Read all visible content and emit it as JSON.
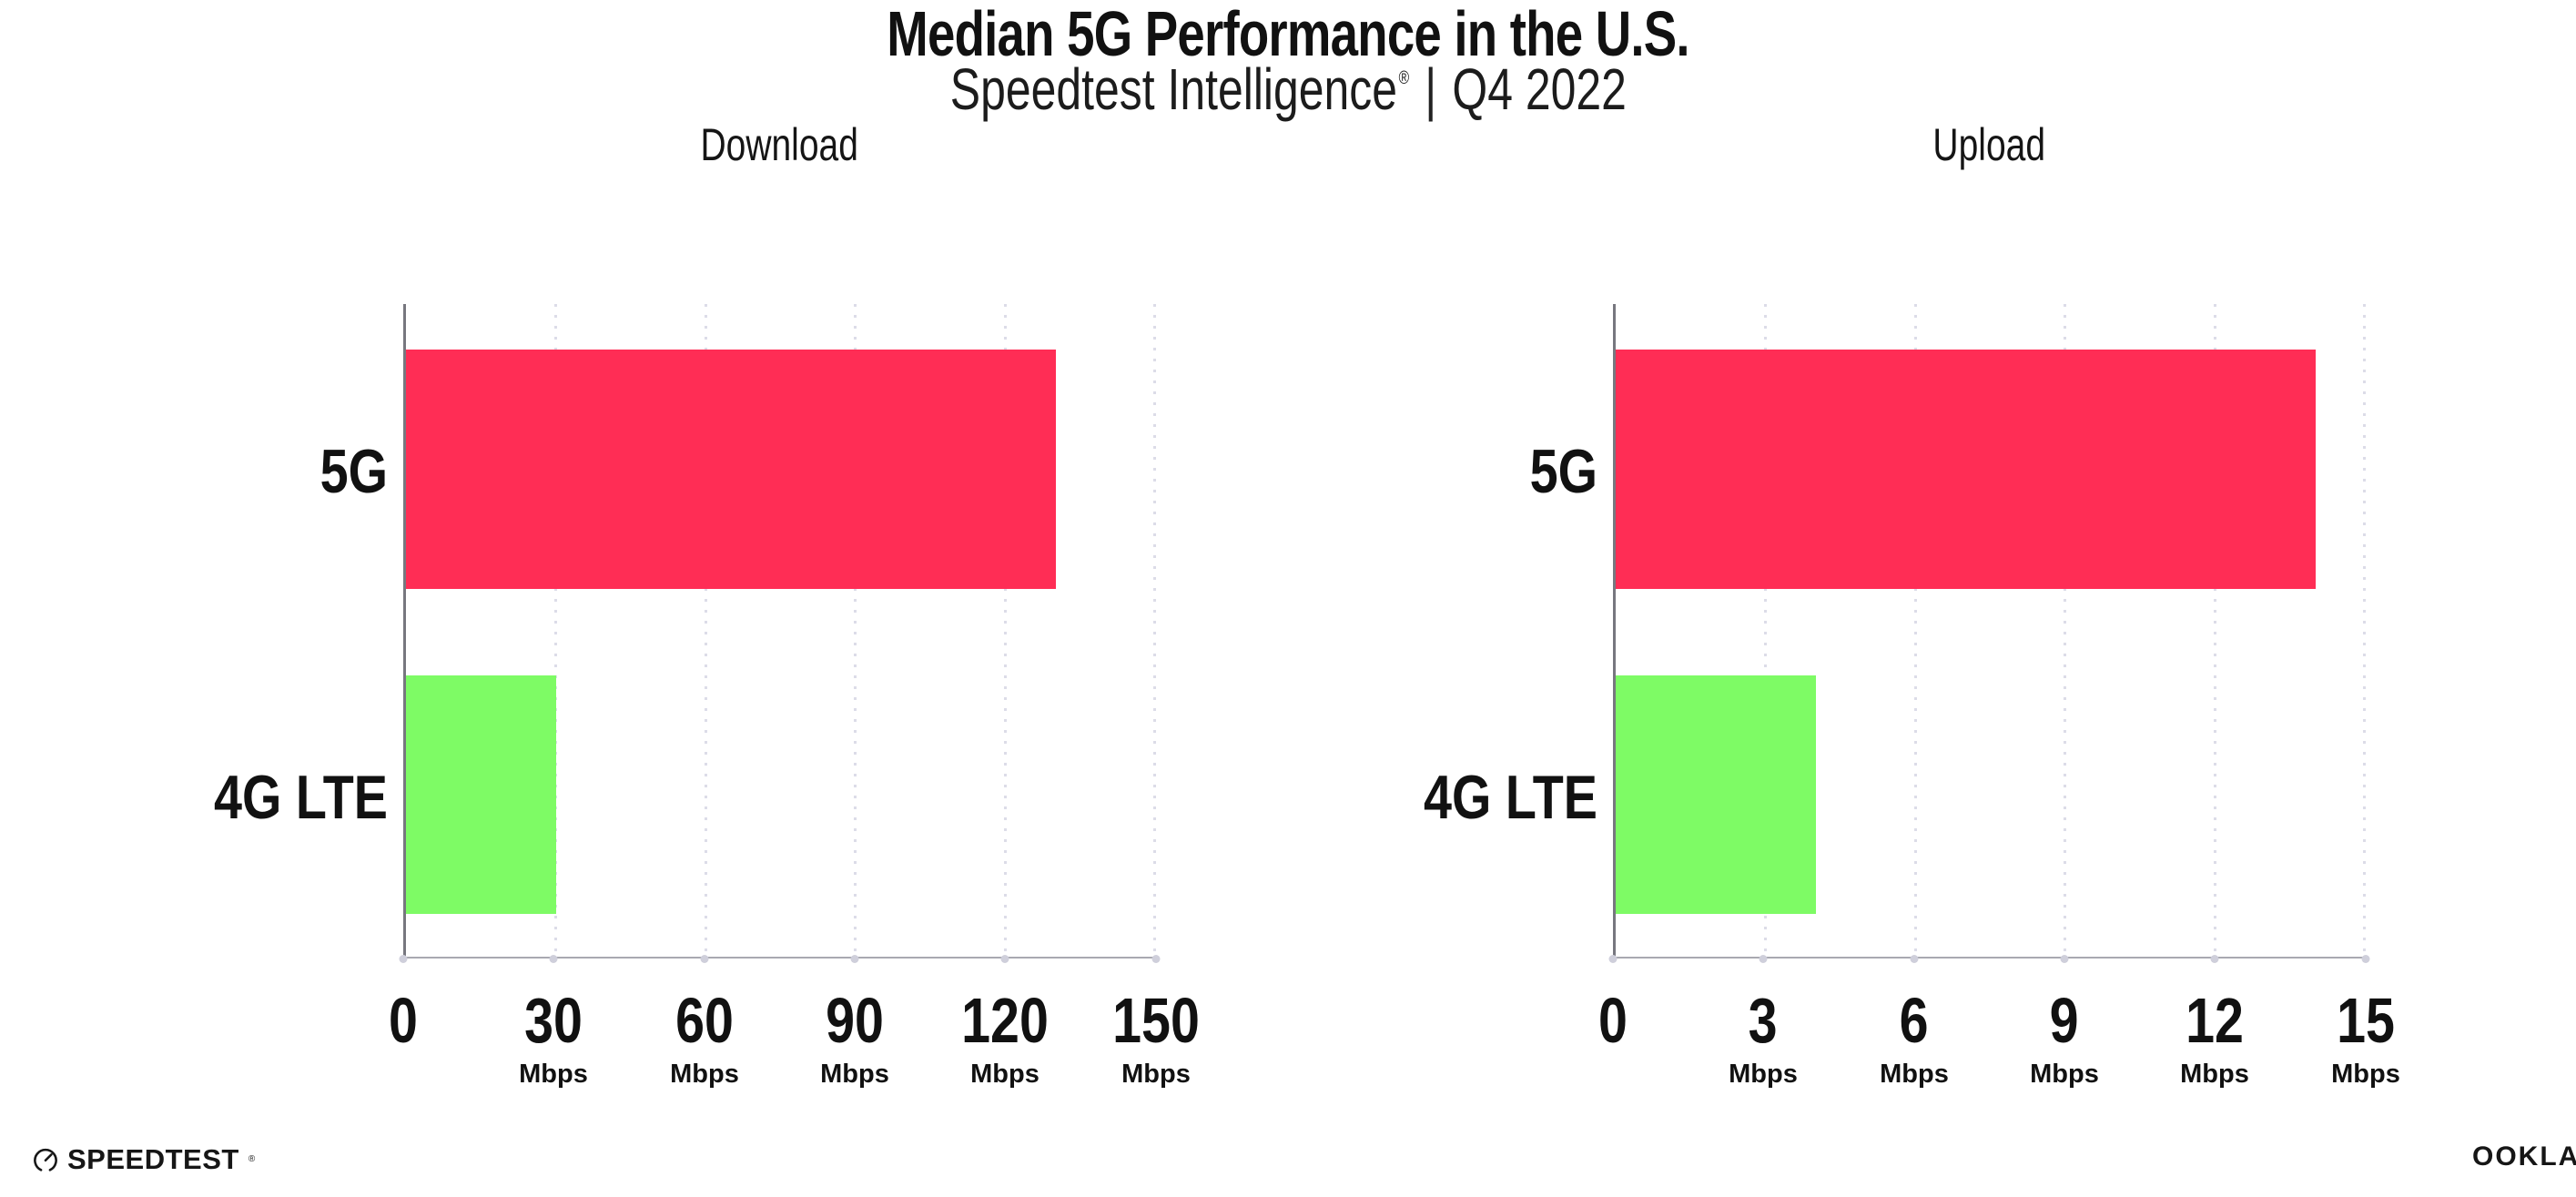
{
  "header": {
    "title": "Median 5G Performance in the U.S.",
    "subtitle": {
      "brand": "Speedtest Intelligence",
      "registered": "®",
      "separator": "|",
      "period": "Q4 2022"
    }
  },
  "chart_data": [
    {
      "type": "bar",
      "orientation": "horizontal",
      "title": "Download",
      "categories": [
        "5G",
        "4G LTE"
      ],
      "values": [
        130,
        30
      ],
      "unit": "Mbps",
      "xlim": [
        0,
        150
      ],
      "xticks": [
        0,
        30,
        60,
        90,
        120,
        150
      ],
      "tick_unit_label": "Mbps",
      "xlabel": "",
      "ylabel": "",
      "grid": "vertical-dotted",
      "legend": "none",
      "bar_colors": [
        "#ff2d55",
        "#7efb65"
      ]
    },
    {
      "type": "bar",
      "orientation": "horizontal",
      "title": "Upload",
      "categories": [
        "5G",
        "4G LTE"
      ],
      "values": [
        14,
        4
      ],
      "unit": "Mbps",
      "xlim": [
        0,
        15
      ],
      "xticks": [
        0,
        3,
        6,
        9,
        12,
        15
      ],
      "tick_unit_label": "Mbps",
      "xlabel": "",
      "ylabel": "",
      "grid": "vertical-dotted",
      "legend": "none",
      "bar_colors": [
        "#ff2d55",
        "#7efb65"
      ]
    }
  ],
  "footer": {
    "speedtest_logo_text": "SPEEDTEST",
    "speedtest_mark": "®",
    "ookla_logo_text": "OOKLA",
    "ookla_mark": "®"
  },
  "colors": {
    "bar_5g": "#ff2d55",
    "bar_4g_lte": "#7efb65",
    "grid": "#dcdce8",
    "x_axis_line": "#a9a9b1",
    "y_axis_line": "#77777f",
    "text": "#111111",
    "background": "#ffffff"
  }
}
